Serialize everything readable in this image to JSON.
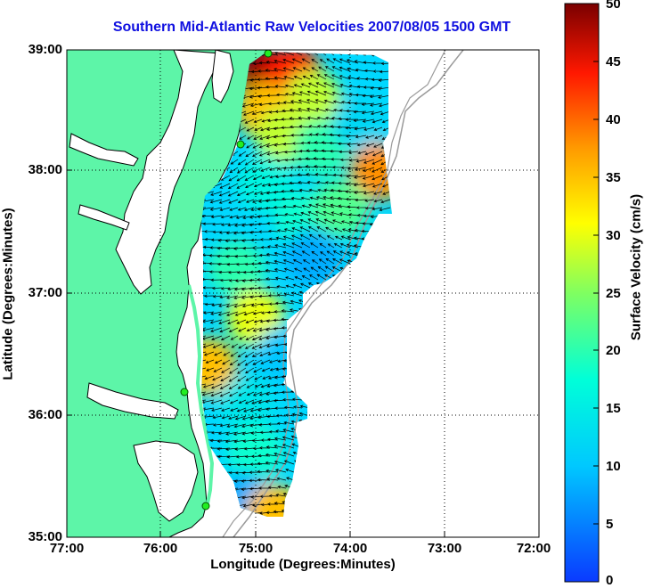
{
  "title": "Southern Mid-Atlantic Raw Velocities 2007/08/05 1500 GMT",
  "xlabel": "Longitude (Degrees:Minutes)",
  "ylabel": "Latitude (Degrees:Minutes)",
  "colorbar_label": "Surface Velocity (cm/s)",
  "x_ticks": [
    "77:00",
    "76:00",
    "75:00",
    "74:00",
    "73:00",
    "72:00"
  ],
  "y_ticks": [
    "39:00",
    "38:00",
    "37:00",
    "36:00",
    "35:00"
  ],
  "colorbar_ticks": [
    "50",
    "45",
    "40",
    "35",
    "30",
    "25",
    "20",
    "15",
    "10",
    "5",
    "0"
  ],
  "colors": {
    "title": "#1010e0",
    "land": "#5df5a8",
    "coastline": "#000000",
    "isobath": "#9a9a9a",
    "vectors": "#000000",
    "grid": "#000000"
  },
  "chart_data": {
    "type": "heatmap",
    "title": "Southern Mid-Atlantic Raw Velocities 2007/08/05 1500 GMT",
    "xlabel": "Longitude (Degrees:Minutes)",
    "ylabel": "Latitude (Degrees:Minutes)",
    "xlim": [
      -77,
      -72
    ],
    "ylim": [
      35,
      39
    ],
    "grid": true,
    "colorbar": {
      "label": "Surface Velocity (cm/s)",
      "range": [
        0,
        50
      ],
      "colormap": "jet"
    },
    "field_samples": [
      {
        "lon": -74.9,
        "lat": 38.8,
        "speed": 49
      },
      {
        "lon": -74.6,
        "lat": 38.8,
        "speed": 44
      },
      {
        "lon": -74.4,
        "lat": 38.6,
        "speed": 28
      },
      {
        "lon": -74.9,
        "lat": 38.5,
        "speed": 35
      },
      {
        "lon": -74.7,
        "lat": 38.3,
        "speed": 28
      },
      {
        "lon": -74.3,
        "lat": 38.2,
        "speed": 20
      },
      {
        "lon": -73.9,
        "lat": 38.4,
        "speed": 12
      },
      {
        "lon": -73.7,
        "lat": 38.0,
        "speed": 38
      },
      {
        "lon": -74.9,
        "lat": 37.9,
        "speed": 16
      },
      {
        "lon": -74.5,
        "lat": 37.6,
        "speed": 18
      },
      {
        "lon": -74.1,
        "lat": 37.7,
        "speed": 22
      },
      {
        "lon": -74.4,
        "lat": 37.3,
        "speed": 8
      },
      {
        "lon": -75.2,
        "lat": 37.2,
        "speed": 20
      },
      {
        "lon": -75.0,
        "lat": 36.8,
        "speed": 30
      },
      {
        "lon": -74.7,
        "lat": 36.5,
        "speed": 10
      },
      {
        "lon": -75.5,
        "lat": 36.4,
        "speed": 35
      },
      {
        "lon": -75.1,
        "lat": 36.1,
        "speed": 14
      },
      {
        "lon": -75.0,
        "lat": 35.7,
        "speed": 18
      },
      {
        "lon": -75.1,
        "lat": 35.3,
        "speed": 8
      },
      {
        "lon": -74.8,
        "lat": 35.2,
        "speed": 35
      }
    ]
  }
}
